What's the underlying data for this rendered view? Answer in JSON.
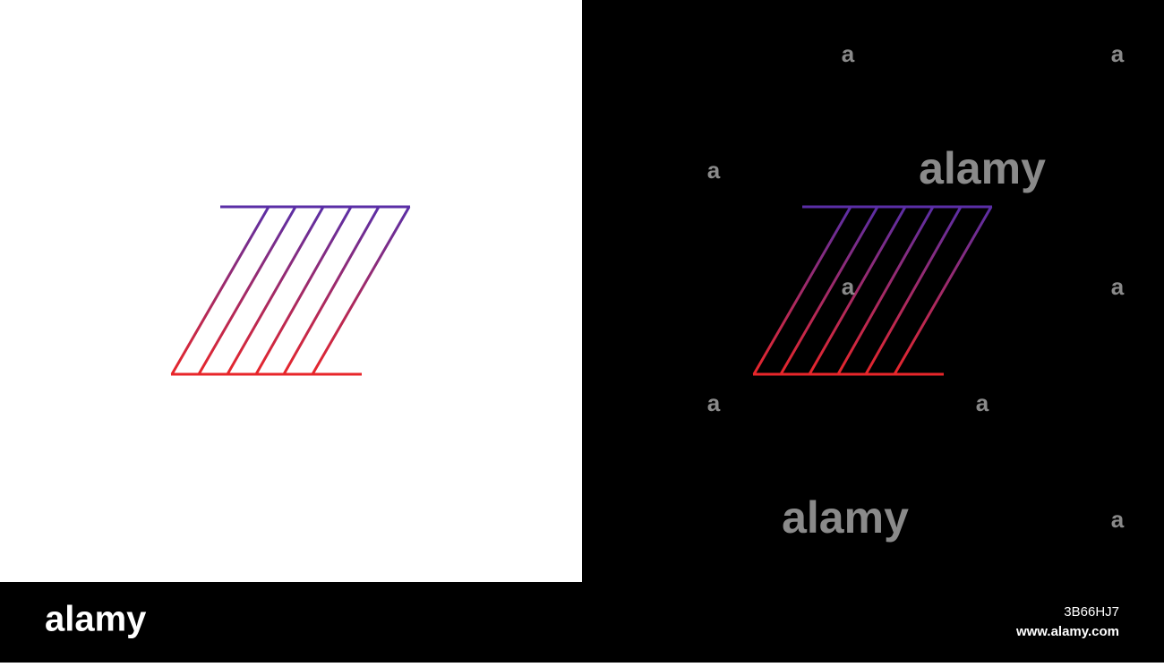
{
  "watermarks": [
    "a",
    "a",
    "a",
    "alamy",
    "a",
    "a",
    "a",
    "a",
    "alamy",
    "a"
  ],
  "footer": {
    "brand": "alamy",
    "image_id": "3B66HJ7",
    "url": "www.alamy.com"
  }
}
